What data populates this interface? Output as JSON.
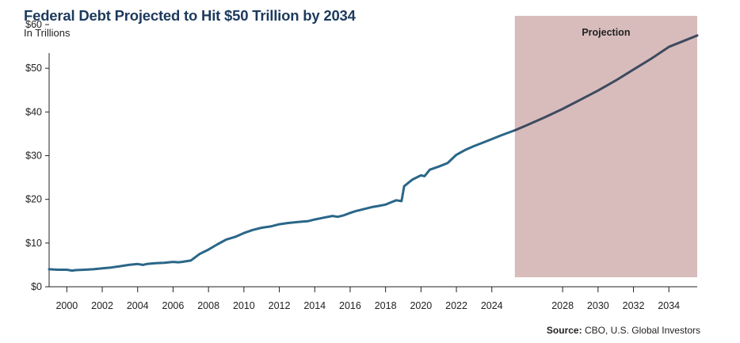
{
  "title": "Federal Debt Projected to Hit $50 Trillion by 2034",
  "subtitle": "In Trillions",
  "source_label": "Source:",
  "source_text": "CBO, U.S. Global Investors",
  "projection_label": "Projection",
  "colors": {
    "historical_line": "#2a6688",
    "projection_line": "#3e4a5f",
    "projection_band": "#d8bcbc",
    "title": "#1d3a5c",
    "axis": "#222222"
  },
  "chart_data": {
    "type": "line",
    "title": "Federal Debt Projected to Hit $50 Trillion by 2034",
    "subtitle": "In Trillions",
    "xlim": [
      1999,
      2035.6
    ],
    "ylim": [
      0,
      62
    ],
    "y_ticks": [
      0,
      10,
      20,
      30,
      40,
      50,
      60
    ],
    "y_tick_labels": [
      "$0",
      "$10",
      "$20",
      "$30",
      "$40",
      "$50",
      "$60"
    ],
    "x_ticks": [
      2000,
      2002,
      2004,
      2006,
      2008,
      2010,
      2012,
      2014,
      2016,
      2018,
      2020,
      2022,
      2024,
      2028,
      2030,
      2032,
      2034
    ],
    "x_tick_labels": [
      "2000",
      "2002",
      "2004",
      "2006",
      "2008",
      "2010",
      "2012",
      "2014",
      "2016",
      "2018",
      "2020",
      "2022",
      "2024",
      "2028",
      "2030",
      "2032",
      "2034"
    ],
    "projection_range": [
      2025.3,
      2035.6
    ],
    "grid": false,
    "series": [
      {
        "role": "historical",
        "x": [
          1999.0,
          1999.5,
          2000.0,
          2000.3,
          2000.5,
          2001.0,
          2001.5,
          2002.0,
          2002.5,
          2003.0,
          2003.5,
          2004.0,
          2004.3,
          2004.5,
          2005.0,
          2005.5,
          2006.0,
          2006.3,
          2006.5,
          2007.0,
          2007.5,
          2008.0,
          2008.5,
          2009.0,
          2009.5,
          2010.0,
          2010.5,
          2011.0,
          2011.5,
          2012.0,
          2012.5,
          2013.0,
          2013.3,
          2013.6,
          2014.0,
          2014.5,
          2015.0,
          2015.3,
          2015.6,
          2016.0,
          2016.3,
          2016.6,
          2017.0,
          2017.3,
          2017.6,
          2018.0,
          2018.3,
          2018.6,
          2018.9,
          2019.05,
          2019.5,
          2020.0,
          2020.2,
          2020.5,
          2021.0,
          2021.5,
          2022.0,
          2022.5,
          2023.0,
          2023.5,
          2024.0,
          2024.5,
          2025.3
        ],
        "y": [
          4.0,
          3.9,
          3.9,
          3.7,
          3.8,
          3.9,
          4.0,
          4.2,
          4.4,
          4.7,
          5.0,
          5.2,
          5.0,
          5.2,
          5.4,
          5.5,
          5.7,
          5.6,
          5.7,
          6.0,
          7.5,
          8.5,
          9.7,
          10.8,
          11.4,
          12.3,
          13.0,
          13.5,
          13.8,
          14.3,
          14.6,
          14.8,
          14.9,
          15.0,
          15.4,
          15.8,
          16.2,
          16.0,
          16.3,
          16.9,
          17.3,
          17.6,
          18.0,
          18.3,
          18.5,
          18.8,
          19.3,
          19.8,
          19.6,
          23.0,
          24.5,
          25.5,
          25.3,
          26.8,
          27.5,
          28.3,
          30.2,
          31.3,
          32.2,
          33.0,
          33.8,
          34.6,
          35.8
        ]
      },
      {
        "role": "projection",
        "x": [
          2025.3,
          2026,
          2027,
          2028,
          2029,
          2030,
          2031,
          2032,
          2033,
          2034,
          2035.6
        ],
        "y": [
          35.8,
          37.0,
          38.8,
          40.7,
          42.8,
          44.9,
          47.2,
          49.7,
          52.2,
          54.9,
          57.5
        ]
      }
    ]
  }
}
